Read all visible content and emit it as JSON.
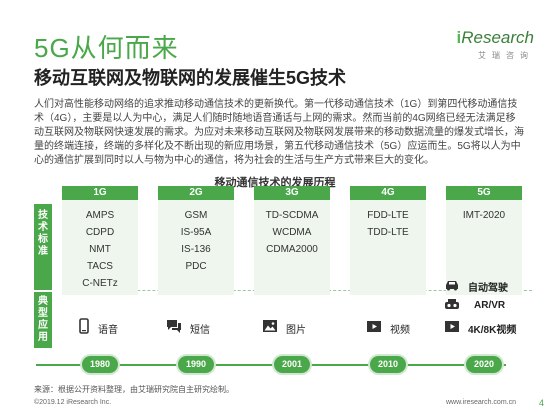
{
  "title": "5G从何而来",
  "subtitle": "移动互联网及物联网的发展催生5G技术",
  "logo": {
    "brand_i": "i",
    "brand_rest": "Research",
    "cn": "艾瑞咨询"
  },
  "intro": "人们对高性能移动网络的追求推动移动通信技术的更新换代。第一代移动通信技术（1G）到第四代移动通信技术（4G），主要是以人为中心，满足人们随时随地语音通话与上网的需求。然而当前的4G网络已经无法满足移动互联网及物联网快速发展的需求。为应对未来移动互联网及物联网发展带来的移动数据流量的爆发式增长，海量的终端连接，终端的多样化及不断出现的新应用场景，第五代移动通信技术（5G）应运而生。5G将以人为中心的通信扩展到同时以人与物为中心的通信，将为社会的生活与生产方式带来巨大的变化。",
  "diagram_title": "移动通信技术的发展历程",
  "side_labels": {
    "tech": "技术标准",
    "apps": "典型应用"
  },
  "generations": [
    {
      "name": "1G",
      "tech": [
        "AMPS",
        "CDPD",
        "NMT",
        "TACS",
        "C-NETz"
      ],
      "app": "语音",
      "app_icon": "mobile-phone-icon",
      "year": "1980"
    },
    {
      "name": "2G",
      "tech": [
        "GSM",
        "IS-95A",
        "IS-136",
        "PDC"
      ],
      "app": "短信",
      "app_icon": "chat-icon",
      "year": "1990"
    },
    {
      "name": "3G",
      "tech": [
        "TD-SCDMA",
        "WCDMA",
        "CDMA2000"
      ],
      "app": "图片",
      "app_icon": "image-icon",
      "year": "2001"
    },
    {
      "name": "4G",
      "tech": [
        "FDD-LTE",
        "TDD-LTE"
      ],
      "app": "视频",
      "app_icon": "video-icon",
      "year": "2010"
    },
    {
      "name": "5G",
      "tech": [
        "IMT-2020"
      ],
      "apps": [
        "自动驾驶",
        "AR/VR",
        "4K/8K视频"
      ],
      "app_icons": [
        "car-icon",
        "vr-headset-icon",
        "video-icon"
      ],
      "year": "2020"
    }
  ],
  "source": "来源：根据公开资料整理，由艾瑞研究院自主研究绘制。",
  "copyright": "©2019.12 iResearch Inc.",
  "website": "www.iresearch.com.cn",
  "page_number": "4",
  "colors": {
    "accent": "#4aa84a",
    "light": "#eef6ee"
  }
}
